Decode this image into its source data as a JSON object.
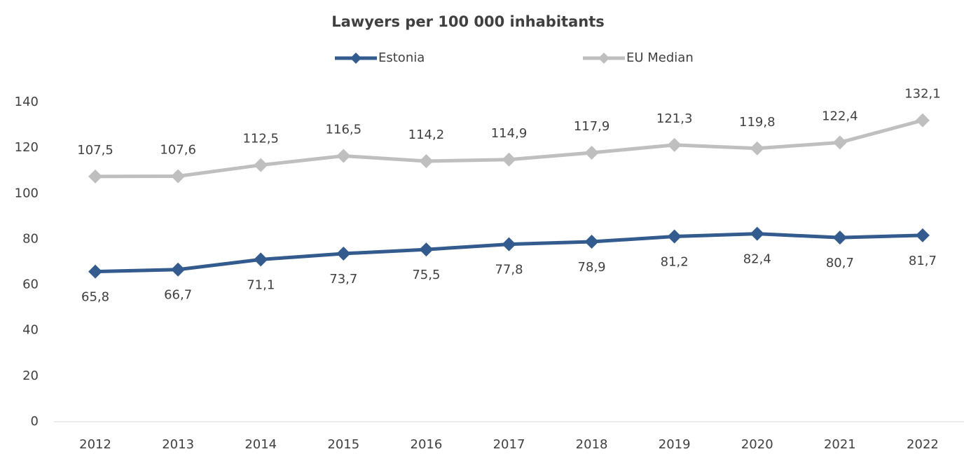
{
  "chart_data": {
    "type": "line",
    "title": "Lawyers per 100 000 inhabitants",
    "categories": [
      "2012",
      "2013",
      "2014",
      "2015",
      "2016",
      "2017",
      "2018",
      "2019",
      "2020",
      "2021",
      "2022"
    ],
    "series": [
      {
        "name": "Estonia",
        "color": "#335b8e",
        "label_position": "below",
        "values": [
          65.8,
          66.7,
          71.1,
          73.7,
          75.5,
          77.8,
          78.9,
          81.2,
          82.4,
          80.7,
          81.7
        ],
        "value_labels": [
          "65,8",
          "66,7",
          "71,1",
          "73,7",
          "75,5",
          "77,8",
          "78,9",
          "81,2",
          "82,4",
          "80,7",
          "81,7"
        ]
      },
      {
        "name": "EU Median",
        "color": "#bfbfbf",
        "label_position": "above",
        "values": [
          107.5,
          107.6,
          112.5,
          116.5,
          114.2,
          114.9,
          117.9,
          121.3,
          119.8,
          122.4,
          132.1
        ],
        "value_labels": [
          "107,5",
          "107,6",
          "112,5",
          "116,5",
          "114,2",
          "114,9",
          "117,9",
          "121,3",
          "119,8",
          "122,4",
          "132,1"
        ]
      }
    ],
    "ylim": [
      0,
      140
    ],
    "yticks": [
      0,
      20,
      40,
      60,
      80,
      100,
      120,
      140
    ],
    "grid": false,
    "legend": "top"
  }
}
